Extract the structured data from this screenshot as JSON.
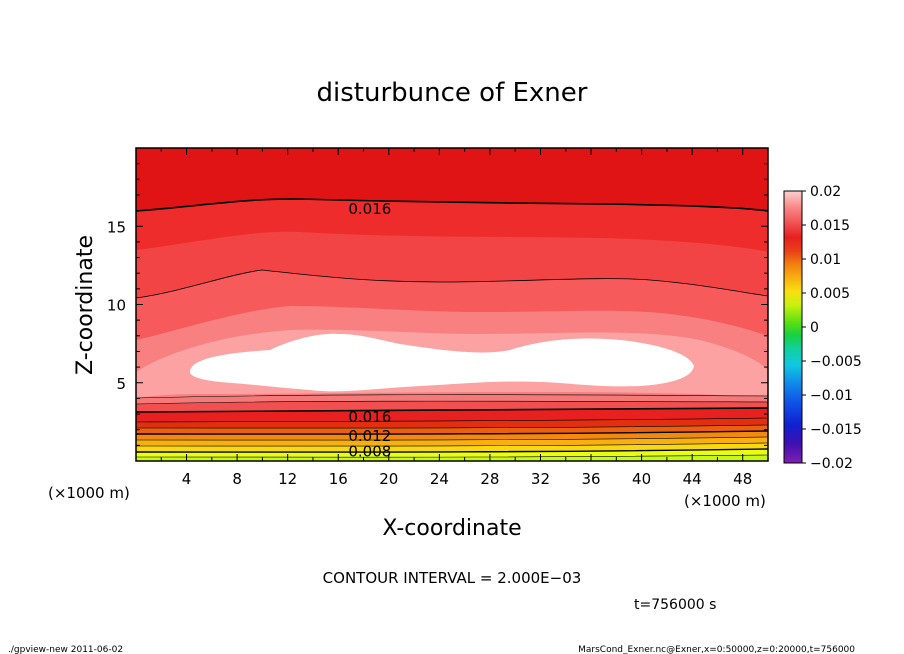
{
  "chart_data": {
    "type": "heatmap",
    "title": "disturbunce of Exner",
    "xlabel": "X-coordinate",
    "ylabel": "Z-coordinate",
    "x_unit": "(×1000 m)",
    "y_unit": "(×1000 m)",
    "xlim": [
      0,
      50
    ],
    "ylim": [
      0,
      20
    ],
    "x_ticks": [
      4,
      8,
      12,
      16,
      20,
      24,
      28,
      32,
      36,
      40,
      44,
      48
    ],
    "y_ticks": [
      5,
      10,
      15
    ],
    "colorbar": {
      "ticks": [
        "0.02",
        "0.015",
        "0.01",
        "0.005",
        "0",
        "−0.005",
        "−0.01",
        "−0.015",
        "−0.02"
      ],
      "range": [
        -0.02,
        0.02
      ]
    },
    "contour_labels": [
      {
        "text": "0.016",
        "x": 18.5,
        "z": 16.1
      },
      {
        "text": "0.016",
        "x": 18.5,
        "z": 2.8
      },
      {
        "text": "0.012",
        "x": 18.5,
        "z": 1.6
      },
      {
        "text": "0.008",
        "x": 18.5,
        "z": 0.6
      }
    ],
    "contour_interval": "CONTOUR INTERVAL = 2.000E−03",
    "time": "t=756000 s",
    "footer_left": "./gpview-new   2011-06-02",
    "footer_right": "MarsCond_Exner.nc@Exner,x=0:50000,z=0:20000,t=756000",
    "band_colors": {
      "top": "#e01414",
      "upper": "#ee2c2c",
      "mid1": "#f65a5a",
      "mid2": "#f98080",
      "inner": "#fca2a2",
      "core": "#ffffff",
      "bottom": [
        "#f47a7a",
        "#f25050",
        "#e82020",
        "#e03010",
        "#ea6010",
        "#f28a10",
        "#f8b010",
        "#f8d810",
        "#e8ff10",
        "#c8f818"
      ]
    }
  }
}
